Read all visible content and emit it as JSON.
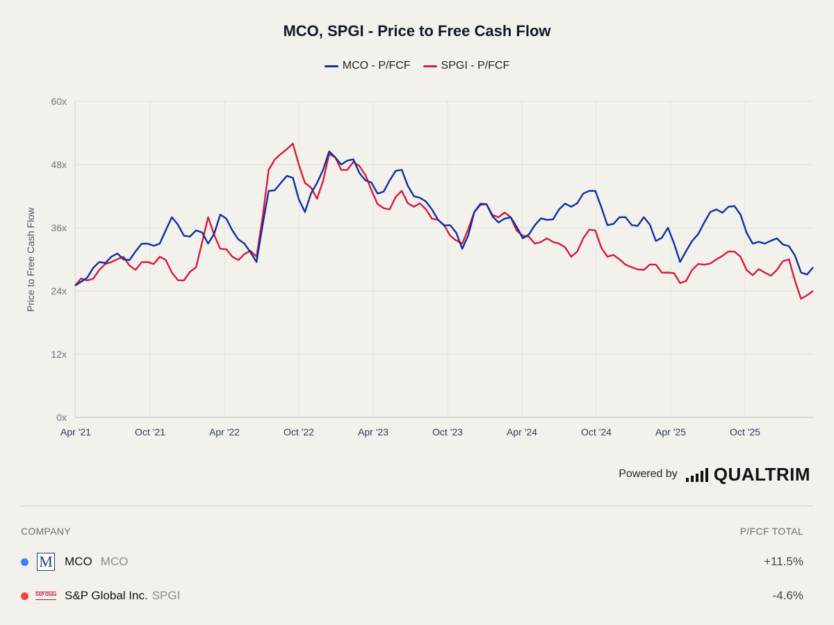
{
  "chart_data": {
    "type": "line",
    "title": "MCO, SPGI - Price to Free Cash Flow",
    "ylabel": "Price to Free Cash Flow",
    "ylim": [
      0,
      60
    ],
    "y_ticks": [
      "0x",
      "12x",
      "24x",
      "36x",
      "48x",
      "60x"
    ],
    "x_ticks": [
      "Apr '21",
      "Oct '21",
      "Apr '22",
      "Oct '22",
      "Apr '23",
      "Oct '23",
      "Apr '24",
      "Oct '24",
      "Apr '25",
      "Oct '25"
    ],
    "grid": true,
    "legend_position": "top-center",
    "x": [
      "2021-04",
      "2021-05",
      "2021-06",
      "2021-07",
      "2021-08",
      "2021-09",
      "2021-10",
      "2021-11",
      "2021-12",
      "2022-01",
      "2022-01b",
      "2022-02",
      "2022-03",
      "2022-04",
      "2022-05",
      "2022-06",
      "2022-07",
      "2022-07b",
      "2022-08",
      "2022-09",
      "2022-10",
      "2022-11",
      "2022-12",
      "2023-01",
      "2023-02",
      "2023-03",
      "2023-04",
      "2023-05",
      "2023-06",
      "2023-07",
      "2023-08",
      "2023-09",
      "2023-10",
      "2023-11",
      "2023-12",
      "2024-01",
      "2024-02",
      "2024-03",
      "2024-04",
      "2024-05",
      "2024-06",
      "2024-07",
      "2024-08",
      "2024-09",
      "2024-10",
      "2024-11",
      "2024-12",
      "2025-01",
      "2025-02",
      "2025-03",
      "2025-04",
      "2025-05",
      "2025-06",
      "2025-07",
      "2025-08",
      "2025-09",
      "2025-10",
      "2025-11",
      "2025-12",
      "2026-01",
      "2026-01b",
      "2026-02"
    ],
    "series": [
      {
        "name": "MCO - P/FCF",
        "color": "#0b2f9f",
        "values": [
          25.0,
          26.5,
          29.5,
          30.5,
          30.0,
          31.5,
          33.0,
          33.0,
          38.0,
          34.5,
          35.5,
          33.0,
          38.5,
          35.5,
          33.0,
          29.5,
          43.0,
          44.5,
          45.5,
          39.0,
          44.5,
          50.5,
          48.0,
          49.0,
          45.0,
          42.5,
          45.0,
          47.0,
          42.0,
          41.0,
          37.5,
          36.5,
          32.0,
          39.0,
          40.5,
          37.0,
          38.0,
          34.0,
          36.5,
          37.5,
          39.5,
          40.0,
          42.5,
          43.0,
          36.5,
          38.0,
          36.5,
          38.0,
          33.5,
          36.0,
          29.5,
          33.5,
          37.0,
          39.5,
          40.0,
          38.5,
          33.0,
          33.0,
          34.0,
          32.5,
          27.5,
          28.5
        ]
      },
      {
        "name": "SPGI - P/FCF",
        "color": "#d7193a",
        "values": [
          25.0,
          26.0,
          28.0,
          29.5,
          30.5,
          28.0,
          29.5,
          30.5,
          27.5,
          26.0,
          28.5,
          38.0,
          32.0,
          30.5,
          31.0,
          30.5,
          47.0,
          50.0,
          52.0,
          44.5,
          41.5,
          50.0,
          47.0,
          48.5,
          46.0,
          40.5,
          39.5,
          43.0,
          40.0,
          39.5,
          37.5,
          34.5,
          33.0,
          39.0,
          40.5,
          38.0,
          38.0,
          34.5,
          33.0,
          34.0,
          33.0,
          30.5,
          34.0,
          35.5,
          30.5,
          30.0,
          28.5,
          28.0,
          29.0,
          27.5,
          25.5,
          28.0,
          29.0,
          30.0,
          31.5,
          30.5,
          27.0,
          27.5,
          28.0,
          30.0,
          22.5,
          24.0
        ]
      }
    ]
  },
  "branding": {
    "powered_by_label": "Powered by",
    "logo_name": "QUALTRIM",
    "logo_icon": "bar-chart-icon"
  },
  "table": {
    "col_company": "COMPANY",
    "col_metric": "P/FCF TOTAL",
    "rows": [
      {
        "dot_color": "#3b82f6",
        "logo_icon": "moodys-m-logo-icon",
        "logo_text": "M",
        "name": "MCO",
        "ticker": "MCO",
        "value": "+11.5%"
      },
      {
        "dot_color": "#ef4444",
        "logo_icon": "sp-global-logo-icon",
        "logo_text": "S&P Global",
        "name": "S&P Global Inc.",
        "ticker": "SPGI",
        "value": "-4.6%"
      }
    ]
  }
}
